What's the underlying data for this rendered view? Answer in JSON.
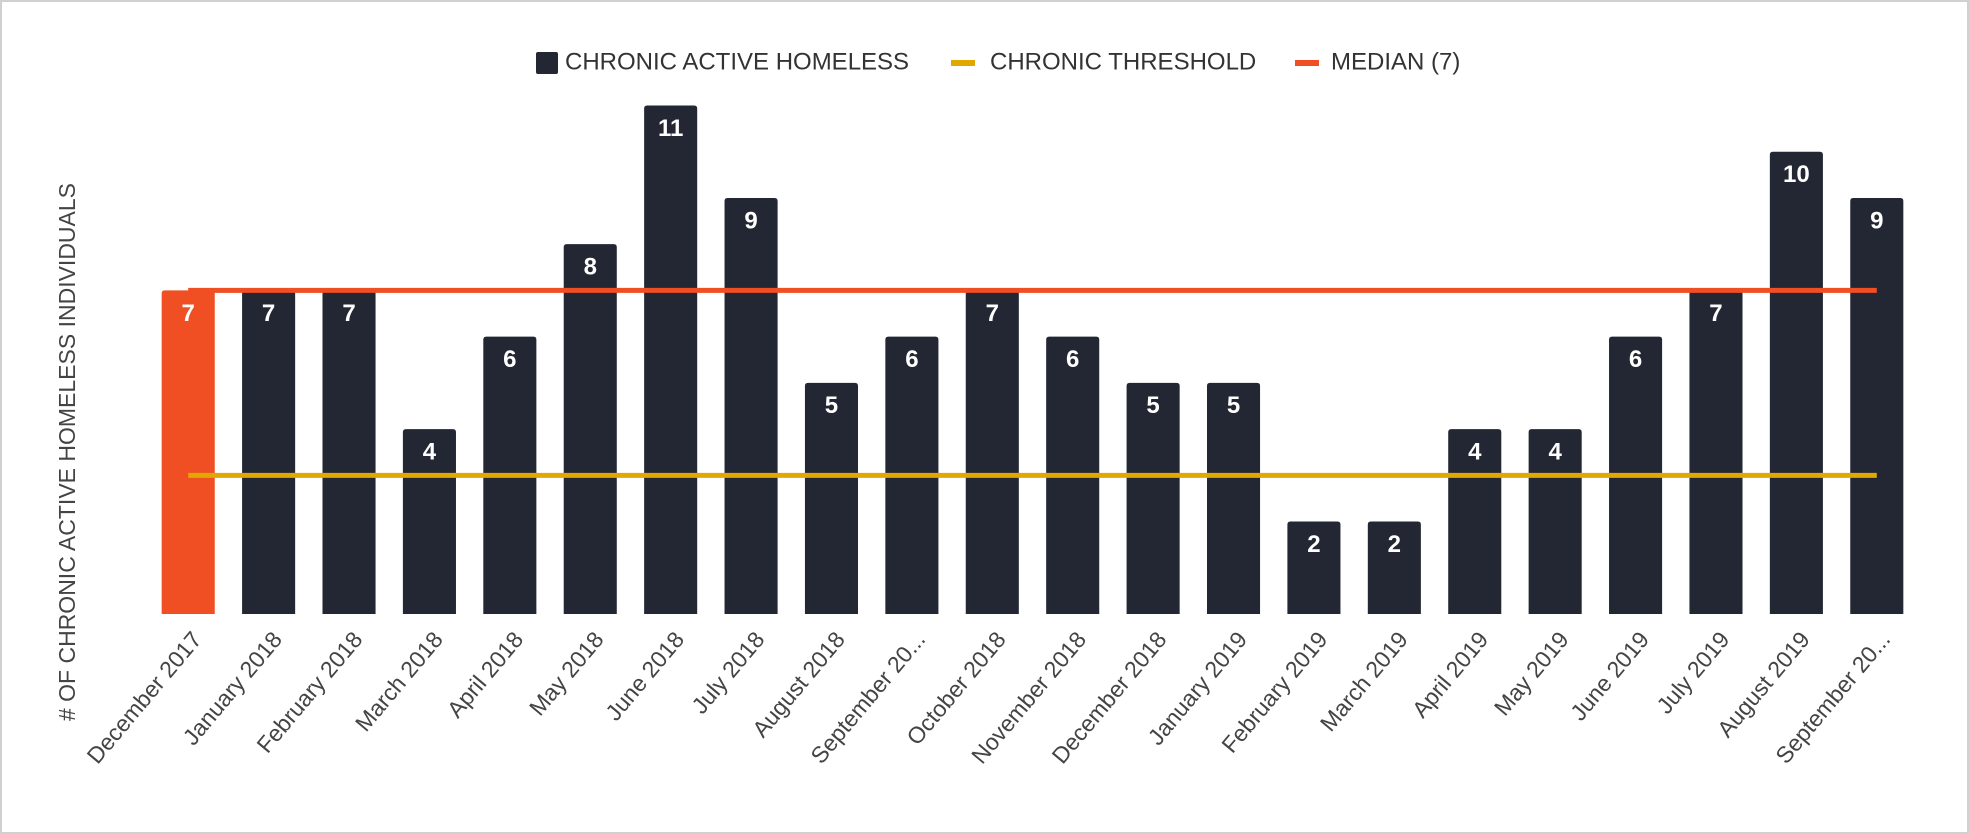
{
  "chart_data": {
    "type": "bar",
    "y_label": "# OF CHRONIC ACTIVE HOMELESS INDIVIDUALS",
    "categories": [
      "December 2017",
      "January 2018",
      "February 2018",
      "March 2018",
      "April 2018",
      "May 2018",
      "June 2018",
      "July 2018",
      "August 2018",
      "September 20...",
      "October 2018",
      "November 2018",
      "December 2018",
      "January 2019",
      "February 2019",
      "March 2019",
      "April 2019",
      "May 2019",
      "June 2019",
      "July 2019",
      "August 2019",
      "September 20..."
    ],
    "ylim": [
      0,
      11
    ],
    "series": [
      {
        "name": "CHRONIC ACTIVE HOMELESS",
        "type": "bar",
        "color": "#222733",
        "colors": [
          "#f04e23",
          "#222733",
          "#222733",
          "#222733",
          "#222733",
          "#222733",
          "#222733",
          "#222733",
          "#222733",
          "#222733",
          "#222733",
          "#222733",
          "#222733",
          "#222733",
          "#222733",
          "#222733",
          "#222733",
          "#222733",
          "#222733",
          "#222733",
          "#222733",
          "#222733"
        ],
        "values": [
          7,
          7,
          7,
          4,
          6,
          8,
          11,
          9,
          5,
          6,
          7,
          6,
          5,
          5,
          2,
          2,
          4,
          4,
          6,
          7,
          10,
          9
        ]
      },
      {
        "name": "CHRONIC THRESHOLD",
        "type": "line",
        "color": "#e0a800",
        "values": [
          3,
          3,
          3,
          3,
          3,
          3,
          3,
          3,
          3,
          3,
          3,
          3,
          3,
          3,
          3,
          3,
          3,
          3,
          3,
          3,
          3,
          3
        ]
      },
      {
        "name": "MEDIAN (7)",
        "type": "line",
        "color": "#f04e23",
        "values": [
          7,
          7,
          7,
          7,
          7,
          7,
          7,
          7,
          7,
          7,
          7,
          7,
          7,
          7,
          7,
          7,
          7,
          7,
          7,
          7,
          7,
          7
        ]
      }
    ]
  }
}
